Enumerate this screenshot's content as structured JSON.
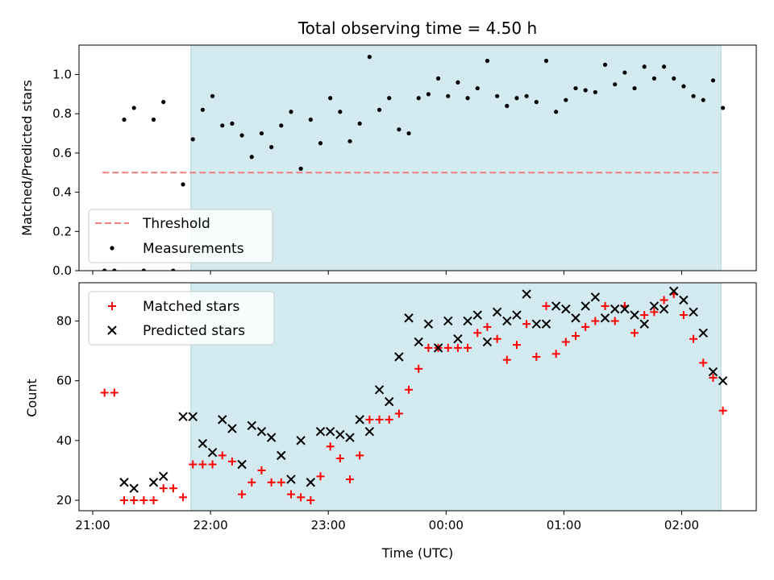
{
  "title": "Total observing time = 4.50 h",
  "colors": {
    "shade": "#d3eaf0",
    "shade_edge": "#a9d3de",
    "threshold": "#f08080",
    "measurement": "#000000",
    "matched": "#ff0000",
    "predicted": "#000000"
  },
  "x_tick_labels": [
    "21:00",
    "22:00",
    "23:00",
    "00:00",
    "01:00",
    "02:00"
  ],
  "chart_data": [
    {
      "type": "scatter",
      "ylabel": "Matched/Predicted stars",
      "ylim": [
        0,
        1.15
      ],
      "y_ticks": [
        "0.0",
        "0.2",
        "0.4",
        "0.6",
        "0.8",
        "1.0"
      ],
      "xlim": [
        "20:53",
        "02:38"
      ],
      "shaded_span": [
        "21:50",
        "02:20"
      ],
      "threshold": {
        "name": "Threshold",
        "value": 0.5,
        "x_range": [
          "21:05",
          "02:19"
        ]
      },
      "legend": {
        "position": "lower-left",
        "entries": [
          "Threshold",
          "Measurements"
        ]
      },
      "series": [
        {
          "name": "Measurements",
          "points": [
            [
              "21:06",
              0.0
            ],
            [
              "21:11",
              0.0
            ],
            [
              "21:16",
              0.77
            ],
            [
              "21:21",
              0.83
            ],
            [
              "21:26",
              0.0
            ],
            [
              "21:31",
              0.77
            ],
            [
              "21:36",
              0.86
            ],
            [
              "21:41",
              0.0
            ],
            [
              "21:46",
              0.44
            ],
            [
              "21:51",
              0.67
            ],
            [
              "21:56",
              0.82
            ],
            [
              "22:01",
              0.89
            ],
            [
              "22:06",
              0.74
            ],
            [
              "22:11",
              0.75
            ],
            [
              "22:16",
              0.69
            ],
            [
              "22:21",
              0.58
            ],
            [
              "22:26",
              0.7
            ],
            [
              "22:31",
              0.63
            ],
            [
              "22:36",
              0.74
            ],
            [
              "22:41",
              0.81
            ],
            [
              "22:46",
              0.52
            ],
            [
              "22:51",
              0.77
            ],
            [
              "22:56",
              0.65
            ],
            [
              "23:01",
              0.88
            ],
            [
              "23:06",
              0.81
            ],
            [
              "23:11",
              0.66
            ],
            [
              "23:16",
              0.75
            ],
            [
              "23:21",
              1.09
            ],
            [
              "23:26",
              0.82
            ],
            [
              "23:31",
              0.88
            ],
            [
              "23:36",
              0.72
            ],
            [
              "23:41",
              0.7
            ],
            [
              "23:46",
              0.88
            ],
            [
              "23:51",
              0.9
            ],
            [
              "23:56",
              0.98
            ],
            [
              "00:01",
              0.89
            ],
            [
              "00:06",
              0.96
            ],
            [
              "00:11",
              0.88
            ],
            [
              "00:16",
              0.93
            ],
            [
              "00:21",
              1.07
            ],
            [
              "00:26",
              0.89
            ],
            [
              "00:31",
              0.84
            ],
            [
              "00:36",
              0.88
            ],
            [
              "00:41",
              0.89
            ],
            [
              "00:46",
              0.86
            ],
            [
              "00:51",
              1.07
            ],
            [
              "00:56",
              0.81
            ],
            [
              "01:01",
              0.87
            ],
            [
              "01:06",
              0.93
            ],
            [
              "01:11",
              0.92
            ],
            [
              "01:16",
              0.91
            ],
            [
              "01:21",
              1.05
            ],
            [
              "01:26",
              0.95
            ],
            [
              "01:31",
              1.01
            ],
            [
              "01:36",
              0.93
            ],
            [
              "01:41",
              1.04
            ],
            [
              "01:46",
              0.98
            ],
            [
              "01:51",
              1.04
            ],
            [
              "01:56",
              0.98
            ],
            [
              "02:01",
              0.94
            ],
            [
              "02:06",
              0.89
            ],
            [
              "02:11",
              0.87
            ],
            [
              "02:16",
              0.97
            ],
            [
              "02:21",
              0.83
            ]
          ]
        }
      ]
    },
    {
      "type": "scatter",
      "ylabel": "Count",
      "xlabel": "Time (UTC)",
      "ylim": [
        16.5,
        92.8
      ],
      "y_ticks": [
        "20",
        "40",
        "60",
        "80"
      ],
      "xlim": [
        "20:53",
        "02:38"
      ],
      "shaded_span": [
        "21:50",
        "02:20"
      ],
      "legend": {
        "position": "upper-left",
        "entries": [
          "Matched stars",
          "Predicted stars"
        ]
      },
      "series": [
        {
          "name": "Matched stars",
          "marker": "plus",
          "points": [
            [
              "21:06",
              56
            ],
            [
              "21:11",
              56
            ],
            [
              "21:16",
              20
            ],
            [
              "21:21",
              20
            ],
            [
              "21:26",
              20
            ],
            [
              "21:31",
              20
            ],
            [
              "21:36",
              24
            ],
            [
              "21:41",
              24
            ],
            [
              "21:46",
              21
            ],
            [
              "21:51",
              32
            ],
            [
              "21:56",
              32
            ],
            [
              "22:01",
              32
            ],
            [
              "22:06",
              35
            ],
            [
              "22:11",
              33
            ],
            [
              "22:16",
              22
            ],
            [
              "22:21",
              26
            ],
            [
              "22:26",
              30
            ],
            [
              "22:31",
              26
            ],
            [
              "22:36",
              26
            ],
            [
              "22:41",
              22
            ],
            [
              "22:46",
              21
            ],
            [
              "22:51",
              20
            ],
            [
              "22:56",
              28
            ],
            [
              "23:01",
              38
            ],
            [
              "23:06",
              34
            ],
            [
              "23:11",
              27
            ],
            [
              "23:16",
              35
            ],
            [
              "23:21",
              47
            ],
            [
              "23:26",
              47
            ],
            [
              "23:31",
              47
            ],
            [
              "23:36",
              49
            ],
            [
              "23:41",
              57
            ],
            [
              "23:46",
              64
            ],
            [
              "23:51",
              71
            ],
            [
              "23:56",
              71
            ],
            [
              "00:01",
              71
            ],
            [
              "00:06",
              71
            ],
            [
              "00:11",
              71
            ],
            [
              "00:16",
              76
            ],
            [
              "00:21",
              78
            ],
            [
              "00:26",
              74
            ],
            [
              "00:31",
              67
            ],
            [
              "00:36",
              72
            ],
            [
              "00:41",
              79
            ],
            [
              "00:46",
              68
            ],
            [
              "00:51",
              85
            ],
            [
              "00:56",
              69
            ],
            [
              "01:01",
              73
            ],
            [
              "01:06",
              75
            ],
            [
              "01:11",
              78
            ],
            [
              "01:16",
              80
            ],
            [
              "01:21",
              85
            ],
            [
              "01:26",
              80
            ],
            [
              "01:31",
              85
            ],
            [
              "01:36",
              76
            ],
            [
              "01:41",
              82
            ],
            [
              "01:46",
              83
            ],
            [
              "01:51",
              87
            ],
            [
              "01:56",
              89
            ],
            [
              "02:01",
              82
            ],
            [
              "02:06",
              74
            ],
            [
              "02:11",
              66
            ],
            [
              "02:16",
              61
            ],
            [
              "02:21",
              50
            ]
          ]
        },
        {
          "name": "Predicted stars",
          "marker": "x",
          "points": [
            [
              "21:16",
              26
            ],
            [
              "21:21",
              24
            ],
            [
              "21:31",
              26
            ],
            [
              "21:36",
              28
            ],
            [
              "21:46",
              48
            ],
            [
              "21:51",
              48
            ],
            [
              "21:56",
              39
            ],
            [
              "22:01",
              36
            ],
            [
              "22:06",
              47
            ],
            [
              "22:11",
              44
            ],
            [
              "22:16",
              32
            ],
            [
              "22:21",
              45
            ],
            [
              "22:26",
              43
            ],
            [
              "22:31",
              41
            ],
            [
              "22:36",
              35
            ],
            [
              "22:41",
              27
            ],
            [
              "22:46",
              40
            ],
            [
              "22:51",
              26
            ],
            [
              "22:56",
              43
            ],
            [
              "23:01",
              43
            ],
            [
              "23:06",
              42
            ],
            [
              "23:11",
              41
            ],
            [
              "23:16",
              47
            ],
            [
              "23:21",
              43
            ],
            [
              "23:26",
              57
            ],
            [
              "23:31",
              53
            ],
            [
              "23:36",
              68
            ],
            [
              "23:41",
              81
            ],
            [
              "23:46",
              73
            ],
            [
              "23:51",
              79
            ],
            [
              "23:56",
              71
            ],
            [
              "00:01",
              80
            ],
            [
              "00:06",
              74
            ],
            [
              "00:11",
              80
            ],
            [
              "00:16",
              82
            ],
            [
              "00:21",
              73
            ],
            [
              "00:26",
              83
            ],
            [
              "00:31",
              80
            ],
            [
              "00:36",
              82
            ],
            [
              "00:41",
              89
            ],
            [
              "00:46",
              79
            ],
            [
              "00:51",
              79
            ],
            [
              "00:56",
              85
            ],
            [
              "01:01",
              84
            ],
            [
              "01:06",
              81
            ],
            [
              "01:11",
              85
            ],
            [
              "01:16",
              88
            ],
            [
              "01:21",
              81
            ],
            [
              "01:26",
              84
            ],
            [
              "01:31",
              84
            ],
            [
              "01:36",
              82
            ],
            [
              "01:41",
              79
            ],
            [
              "01:46",
              85
            ],
            [
              "01:51",
              84
            ],
            [
              "01:56",
              90
            ],
            [
              "02:01",
              87
            ],
            [
              "02:06",
              83
            ],
            [
              "02:11",
              76
            ],
            [
              "02:16",
              63
            ],
            [
              "02:21",
              60
            ]
          ]
        }
      ]
    }
  ]
}
